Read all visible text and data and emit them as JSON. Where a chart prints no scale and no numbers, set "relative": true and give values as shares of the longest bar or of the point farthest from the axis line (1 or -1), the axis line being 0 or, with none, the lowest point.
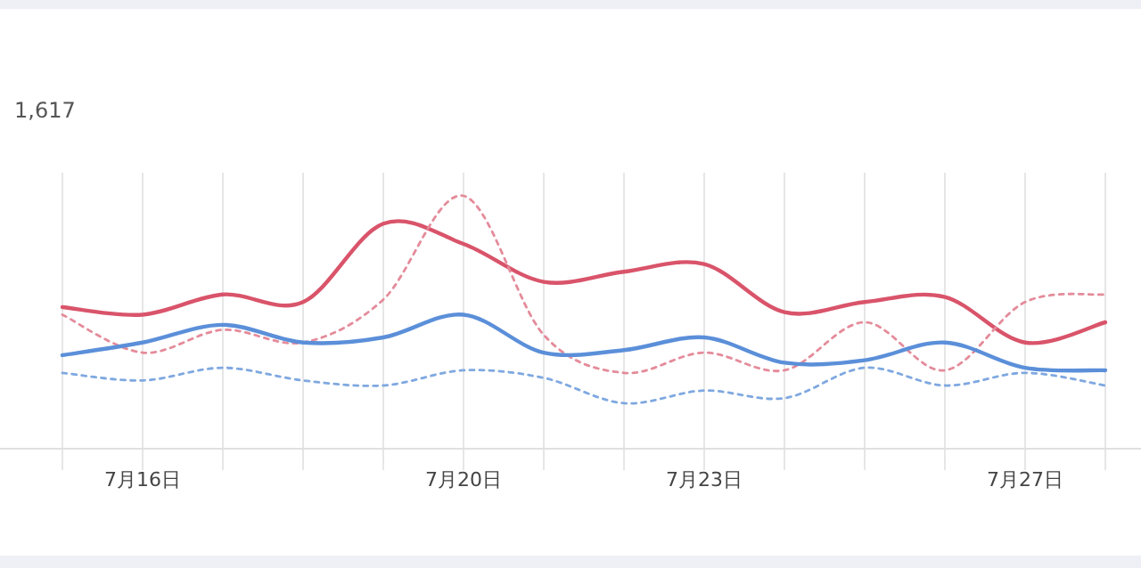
{
  "chart_data": {
    "type": "line",
    "relative": true,
    "grid": "x",
    "annotations": [
      "1,617"
    ],
    "categories": [
      null,
      "7月16日",
      null,
      null,
      null,
      "7月20日",
      null,
      null,
      "7月23日",
      null,
      null,
      null,
      "7月27日",
      null
    ],
    "series": [
      {
        "color": "#d9546a",
        "line_style": "solid",
        "values": [
          0.56,
          0.53,
          0.61,
          0.58,
          0.89,
          0.81,
          0.66,
          0.7,
          0.73,
          0.54,
          0.58,
          0.6,
          0.42,
          0.5
        ]
      },
      {
        "color": "#e48b9a",
        "line_style": "dotted",
        "values": [
          0.53,
          0.38,
          0.47,
          0.42,
          0.59,
          1,
          0.45,
          0.3,
          0.38,
          0.31,
          0.5,
          0.31,
          0.58,
          0.61
        ]
      },
      {
        "color": "#5b8fd9",
        "line_style": "solid",
        "values": [
          0.37,
          0.42,
          0.49,
          0.42,
          0.44,
          0.53,
          0.38,
          0.39,
          0.44,
          0.34,
          0.35,
          0.42,
          0.32,
          0.31
        ]
      },
      {
        "color": "#7fa8e0",
        "line_style": "dotted",
        "values": [
          0.3,
          0.27,
          0.32,
          0.27,
          0.25,
          0.31,
          0.28,
          0.18,
          0.23,
          0.2,
          0.32,
          0.25,
          0.3,
          0.25
        ]
      }
    ]
  }
}
